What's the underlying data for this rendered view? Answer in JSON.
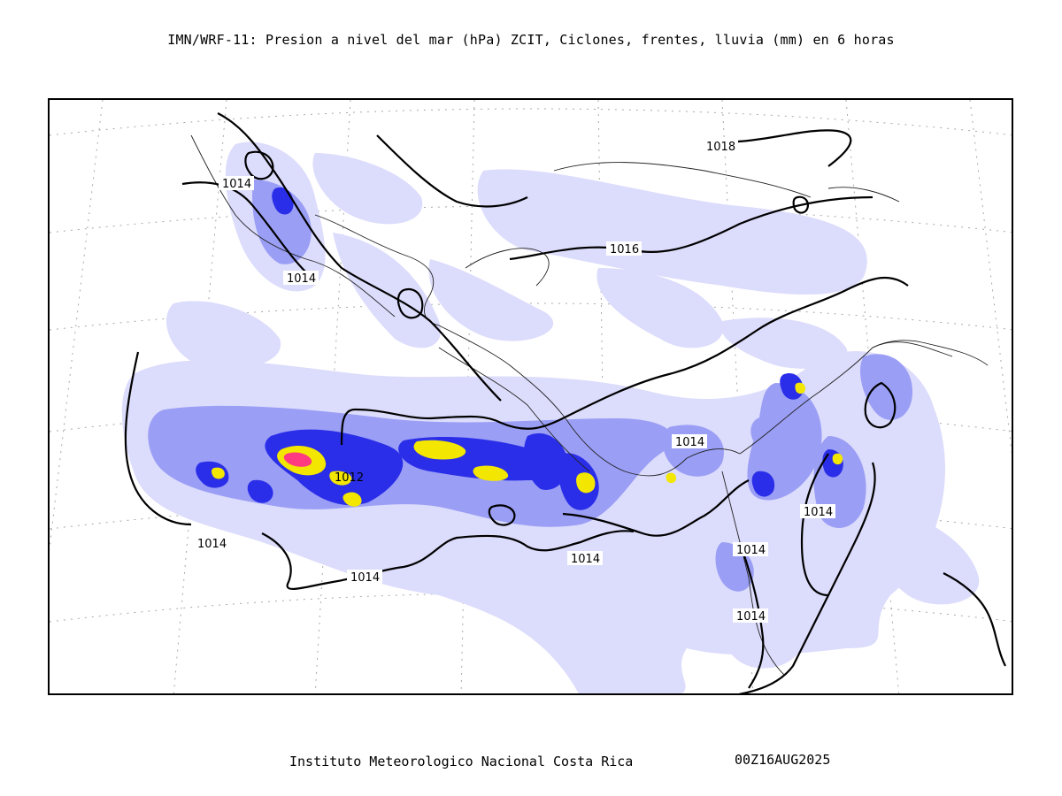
{
  "header": {
    "title": "IMN/WRF-11: Presion a nivel del mar (hPa) ZCIT, Ciclones, frentes, lluvia (mm) en 6 horas"
  },
  "footer": {
    "institution": "Instituto Meteorologico Nacional Costa Rica",
    "timestamp": "00Z16AUG2025"
  },
  "map": {
    "isobar_labels": [
      "1018",
      "1014",
      "1016",
      "1014",
      "1014",
      "1012",
      "1014",
      "1014",
      "1014",
      "1014",
      "1014",
      "1014"
    ],
    "colors": {
      "rain_light": "#dcdcfc",
      "rain_mid": "#9a9ef5",
      "rain_heavy": "#2a2ee8",
      "rain_very_heavy": "#f3e600",
      "rain_extreme": "#ff3a80",
      "isobar": "#000000",
      "grid": "#a8a8a8"
    }
  }
}
